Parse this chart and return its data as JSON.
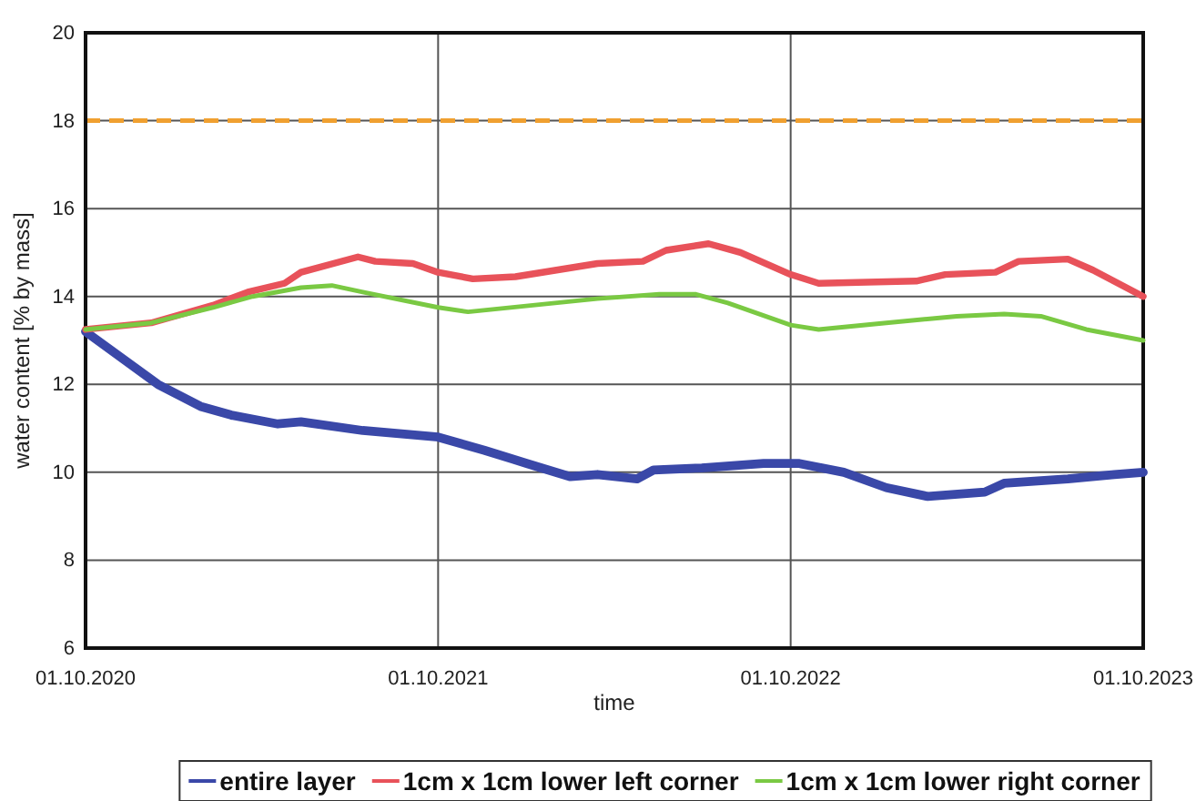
{
  "chart_data": {
    "type": "line",
    "xlabel": "time",
    "ylabel": "water content [% by mass]",
    "xlim": [
      "2020-10-01",
      "2023-10-01"
    ],
    "xticks": [
      {
        "value": "2020-10-01",
        "label": "01.10.2020"
      },
      {
        "value": "2021-10-01",
        "label": "01.10.2021"
      },
      {
        "value": "2022-10-01",
        "label": "01.10.2022"
      },
      {
        "value": "2023-10-01",
        "label": "01.10.2023"
      }
    ],
    "ylim": [
      6,
      20
    ],
    "yticks": [
      6,
      8,
      10,
      12,
      14,
      16,
      18,
      20
    ],
    "grid": true,
    "legend": "bottom",
    "line_style": "solid",
    "ref_lines": [
      {
        "axis": "y",
        "value": 18,
        "color": "#f0a030",
        "line_style": "dashed"
      }
    ],
    "series": [
      {
        "name": "entire layer",
        "color": "#3a48a8",
        "x": [
          "2020-10-01",
          "2020-12-15",
          "2021-01-28",
          "2021-03-01",
          "2021-04-18",
          "2021-05-12",
          "2021-07-15",
          "2021-10-01",
          "2021-11-18",
          "2022-01-01",
          "2022-02-15",
          "2022-03-15",
          "2022-04-25",
          "2022-05-12",
          "2022-07-01",
          "2022-09-03",
          "2022-10-10",
          "2022-11-25",
          "2023-01-08",
          "2023-02-20",
          "2023-04-20",
          "2023-05-10",
          "2023-07-15",
          "2023-09-01",
          "2023-10-01"
        ],
        "values": [
          13.2,
          12.0,
          11.5,
          11.3,
          11.1,
          11.15,
          10.95,
          10.8,
          10.5,
          10.2,
          9.9,
          9.95,
          9.85,
          10.05,
          10.1,
          10.2,
          10.2,
          10.0,
          9.65,
          9.45,
          9.55,
          9.75,
          9.85,
          9.95,
          10.0
        ]
      },
      {
        "name": "1cm x 1cm lower left corner",
        "color": "#e8525a",
        "x": [
          "2020-10-01",
          "2020-12-08",
          "2021-02-10",
          "2021-03-18",
          "2021-04-25",
          "2021-05-12",
          "2021-07-10",
          "2021-07-28",
          "2021-09-05",
          "2021-10-01",
          "2021-11-06",
          "2021-12-20",
          "2022-03-15",
          "2022-05-01",
          "2022-05-25",
          "2022-07-08",
          "2022-08-10",
          "2022-10-01",
          "2022-10-30",
          "2023-02-08",
          "2023-03-10",
          "2023-05-01",
          "2023-05-25",
          "2023-07-15",
          "2023-08-10",
          "2023-10-01"
        ],
        "values": [
          13.25,
          13.4,
          13.8,
          14.1,
          14.3,
          14.55,
          14.9,
          14.8,
          14.75,
          14.55,
          14.4,
          14.45,
          14.75,
          14.8,
          15.05,
          15.2,
          15.0,
          14.5,
          14.3,
          14.35,
          14.5,
          14.55,
          14.8,
          14.85,
          14.6,
          14.0
        ]
      },
      {
        "name": "1cm x 1cm lower right corner",
        "color": "#7ac943",
        "x": [
          "2020-10-01",
          "2020-12-08",
          "2021-02-10",
          "2021-03-23",
          "2021-05-12",
          "2021-06-13",
          "2021-07-15",
          "2021-10-01",
          "2021-11-01",
          "2022-03-15",
          "2022-05-18",
          "2022-06-25",
          "2022-07-28",
          "2022-10-01",
          "2022-10-30",
          "2023-01-08",
          "2023-03-22",
          "2023-05-10",
          "2023-06-17",
          "2023-08-03",
          "2023-10-01"
        ],
        "values": [
          13.25,
          13.4,
          13.75,
          14.0,
          14.2,
          14.25,
          14.1,
          13.75,
          13.65,
          13.95,
          14.05,
          14.05,
          13.85,
          13.35,
          13.25,
          13.4,
          13.55,
          13.6,
          13.55,
          13.25,
          13.0
        ]
      }
    ]
  }
}
